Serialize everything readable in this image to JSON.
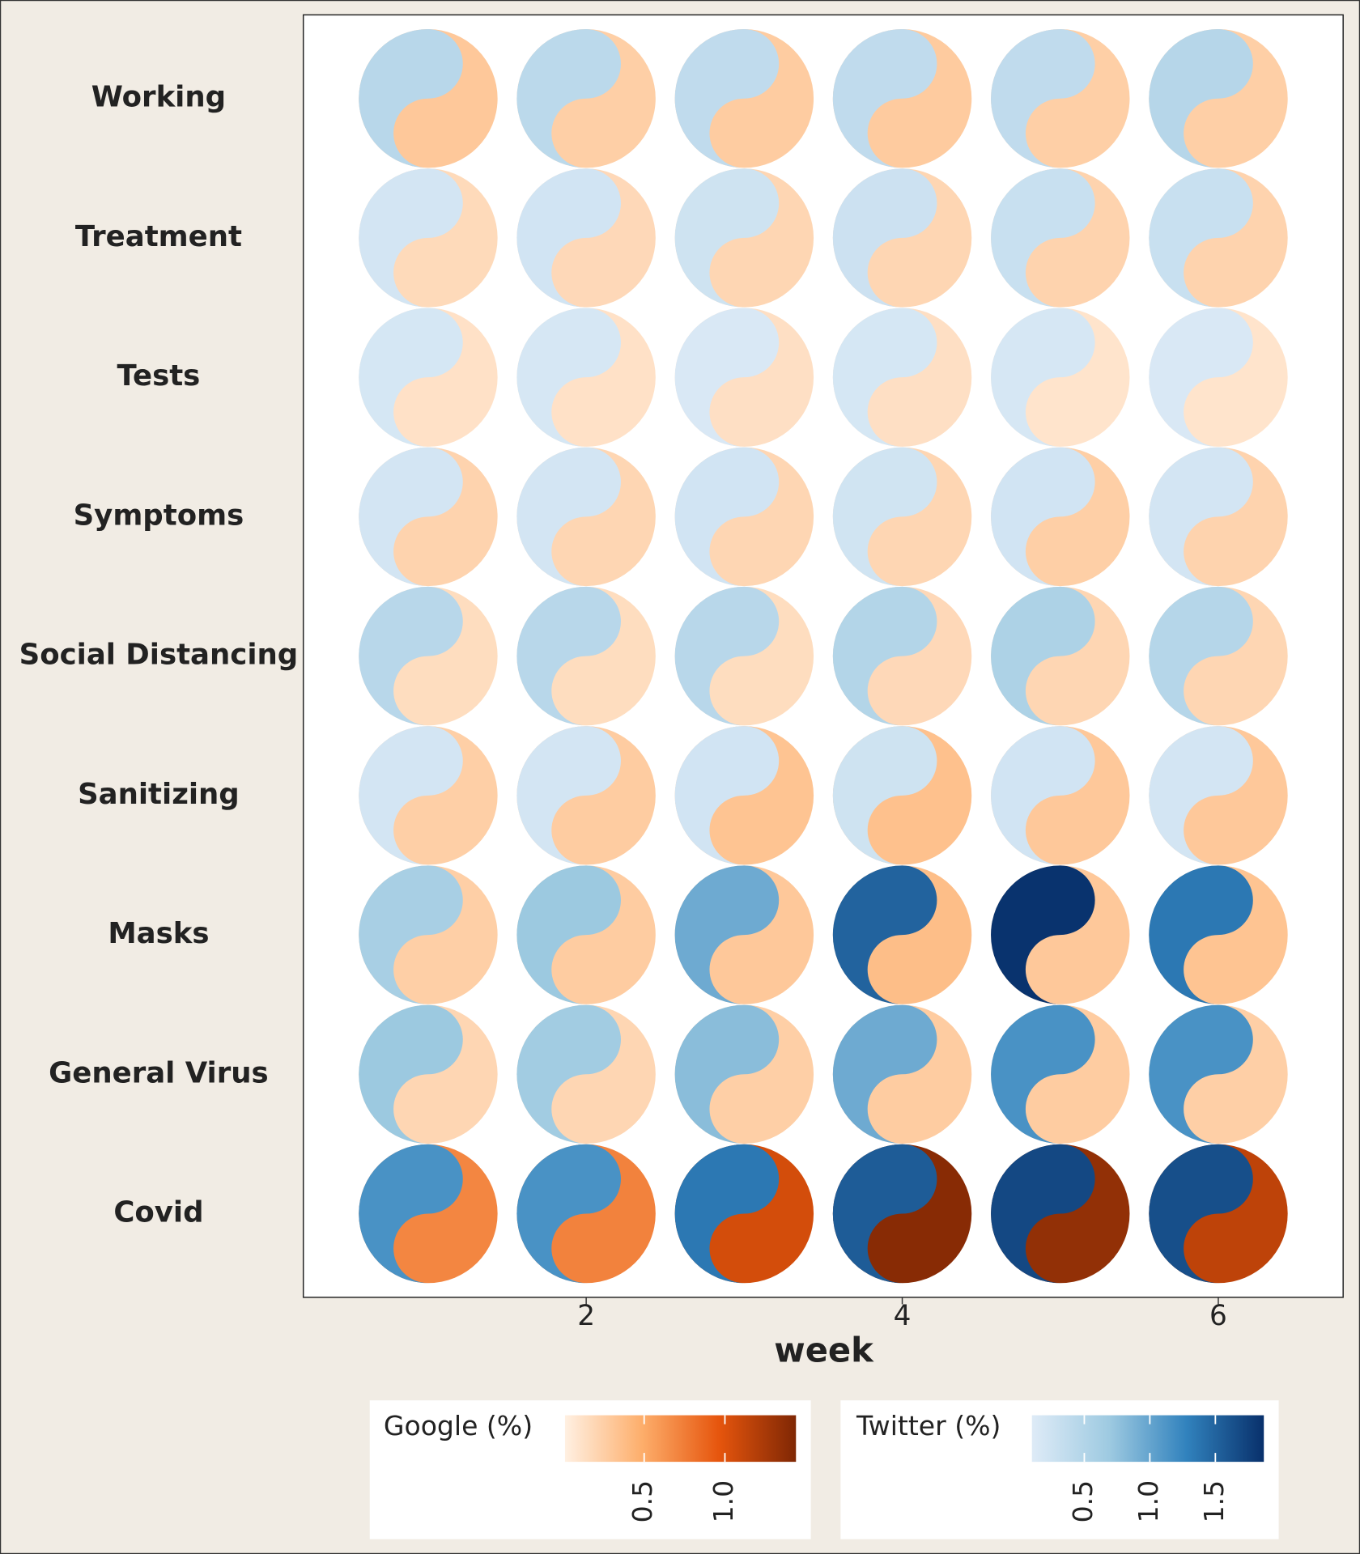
{
  "chart_data": {
    "type": "yin-yang-glyph",
    "x_label": "week",
    "categories": [
      "Working",
      "Treatment",
      "Tests",
      "Symptoms",
      "Social Distancing",
      "Sanitizing",
      "Masks",
      "General Virus",
      "Covid"
    ],
    "x": [
      1,
      2,
      3,
      4,
      5,
      6
    ],
    "xlim": [
      0.21,
      6.79
    ],
    "xticks": [
      2,
      4,
      6
    ],
    "series": [
      {
        "name": "Google (%)",
        "colors": [
          "#fff0e2",
          "#fdae6b",
          "#e6550d",
          "#7f2704"
        ],
        "lim": [
          0.01,
          1.44
        ],
        "ticks": [
          0.5,
          {
            "value": 1,
            "label": "1.0"
          }
        ],
        "values": [
          [
            0.3,
            0.25,
            0.27,
            0.28,
            0.25,
            0.25
          ],
          [
            0.17,
            0.18,
            0.2,
            0.2,
            0.22,
            0.22
          ],
          [
            0.12,
            0.12,
            0.13,
            0.13,
            0.1,
            0.1
          ],
          [
            0.22,
            0.2,
            0.2,
            0.2,
            0.25,
            0.22
          ],
          [
            0.15,
            0.15,
            0.15,
            0.18,
            0.2,
            0.2
          ],
          [
            0.25,
            0.27,
            0.33,
            0.35,
            0.3,
            0.3
          ],
          [
            0.25,
            0.27,
            0.3,
            0.37,
            0.3,
            0.33
          ],
          [
            0.2,
            0.2,
            0.25,
            0.27,
            0.27,
            0.25
          ],
          [
            0.7,
            0.72,
            1.05,
            1.4,
            1.35,
            1.15
          ]
        ]
      },
      {
        "name": "Twitter (%)",
        "colors": [
          "#deebf7",
          "#9ecae1",
          "#3182bd",
          "#08306b"
        ],
        "lim": [
          0.1,
          1.87
        ],
        "ticks": [
          0.5,
          {
            "value": 1,
            "label": "1.0"
          },
          1.5
        ],
        "values": [
          [
            0.45,
            0.42,
            0.38,
            0.38,
            0.38,
            0.47
          ],
          [
            0.2,
            0.22,
            0.25,
            0.27,
            0.3,
            0.3
          ],
          [
            0.18,
            0.17,
            0.15,
            0.18,
            0.17,
            0.15
          ],
          [
            0.2,
            0.2,
            0.22,
            0.23,
            0.22,
            0.2
          ],
          [
            0.45,
            0.45,
            0.45,
            0.5,
            0.55,
            0.48
          ],
          [
            0.2,
            0.2,
            0.22,
            0.25,
            0.22,
            0.2
          ],
          [
            0.6,
            0.7,
            0.95,
            1.5,
            1.85,
            1.35
          ],
          [
            0.7,
            0.65,
            0.8,
            0.95,
            1.15,
            1.15
          ],
          [
            1.15,
            1.15,
            1.35,
            1.55,
            1.7,
            1.65
          ]
        ]
      }
    ]
  }
}
